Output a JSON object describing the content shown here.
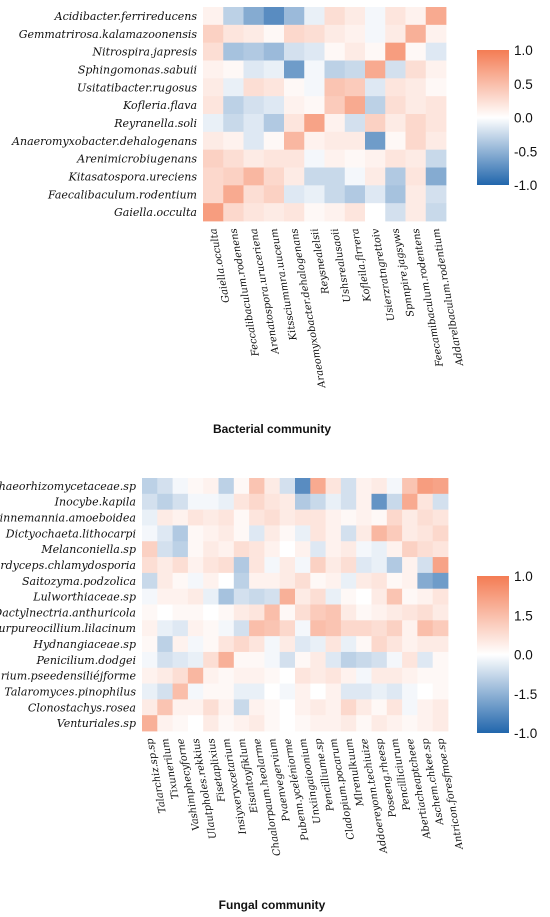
{
  "chart_data": [
    {
      "type": "heatmap",
      "caption": "Bacterial community",
      "rows": [
        "Acidibacter.ferrireducens",
        "Gemmatrirosa.kalamazoonensis",
        "Nitrospira.japresis",
        "Sphingomonas.sabuii",
        "Usitatibacter.rugosus",
        "Kofleria.flava",
        "Reyranella.soli",
        "Anaeromyxobacter.dehalogenans",
        "Arenimicrobiugenans",
        "Kitasatospora.ureciens",
        "Faecalibaculum.rodentium",
        "Gaiella.occulta"
      ],
      "columns": [
        "Gaiella.occulta",
        "Feccalibaculum.rodenens",
        "Arenatospora.uruceriena",
        "Kitssciummra.uuceum",
        "Araeomyxobacter.dehalogenans",
        "Reysnealelsii",
        "Ushsrealusaoii",
        "Kofleila.flrrera",
        "Usierzratngrettoiv",
        "Spnnpire.jagsyws",
        "Feecamibaculum.rodentens",
        "Addarelbaculum.rodentium"
      ],
      "values": [
        [
          0.1,
          -0.3,
          -0.55,
          -0.75,
          -0.45,
          -0.1,
          0.25,
          0.15,
          -0.05,
          0.2,
          0.1,
          0.65
        ],
        [
          0.35,
          0.2,
          0.15,
          0.05,
          0.3,
          0.25,
          0.15,
          0.1,
          -0.05,
          0.15,
          0.6,
          0.1
        ],
        [
          0.25,
          -0.4,
          -0.35,
          -0.45,
          -0.2,
          -0.15,
          0.05,
          0.15,
          0.05,
          0.75,
          0.05,
          -0.15
        ],
        [
          0.1,
          0.05,
          -0.15,
          -0.1,
          -0.65,
          -0.05,
          -0.3,
          -0.25,
          0.65,
          -0.2,
          0.25,
          0.1
        ],
        [
          0.15,
          -0.1,
          0.25,
          0.2,
          0.05,
          -0.05,
          0.45,
          0.4,
          -0.15,
          0.2,
          0.15,
          0.05
        ],
        [
          0.2,
          -0.3,
          -0.2,
          -0.15,
          0.1,
          0.05,
          0.4,
          0.65,
          -0.3,
          0.25,
          0.15,
          0.2
        ],
        [
          -0.1,
          -0.25,
          -0.15,
          -0.35,
          0.2,
          0.7,
          0.1,
          -0.2,
          0.35,
          0.15,
          0.3,
          0.2
        ],
        [
          0.15,
          0.1,
          -0.15,
          0.05,
          0.55,
          0.1,
          0.15,
          0.15,
          -0.65,
          0.05,
          0.3,
          0.15
        ],
        [
          0.35,
          0.25,
          0.15,
          0.2,
          0.2,
          -0.05,
          0.1,
          0.05,
          0.1,
          0.2,
          0.15,
          -0.25
        ],
        [
          0.3,
          0.35,
          0.55,
          0.3,
          0.15,
          -0.25,
          -0.25,
          -0.05,
          0.15,
          -0.35,
          0.2,
          -0.55
        ],
        [
          0.3,
          0.65,
          0.25,
          0.35,
          -0.15,
          -0.1,
          -0.25,
          -0.35,
          -0.15,
          -0.4,
          0.15,
          -0.2
        ],
        [
          0.75,
          0.3,
          0.2,
          0.15,
          0.2,
          0.05,
          0.1,
          0.2,
          0.0,
          -0.2,
          0.15,
          -0.25
        ]
      ],
      "legend_ticks": [
        "1.0",
        "0.5",
        "0.0",
        "-0.5",
        "-1.0"
      ],
      "colormap": {
        "low": "#2166ac",
        "mid": "#ffffff",
        "high": "#f47c54"
      }
    },
    {
      "type": "heatmap",
      "caption": "Fungal community",
      "rows": [
        "Archaeorhizomycetaceae.sp",
        "Inocybe.kapila",
        "Linnemannia.amoeboidea",
        "Dictyochaeta.lithocarpi",
        "Melanconiella.sp",
        "Metacordyceps.chlamydosporia",
        "Saitozyma.podzolica",
        "Lulworthiaceae.sp",
        "Dactylnectria.anthuricola",
        "Purpureocillium.lilacinum",
        "Hydnangiaceae.sp",
        "Penicilium.dodgei",
        "Fusarium.pseedensiliéjforme",
        "Talaromyces.pinophilus",
        "Clonostachys.rosea",
        "Venturiales.sp"
      ],
      "columns": [
        "Talarchiz.sp.sp",
        "Tixunerilum",
        "Vashimphecyforne",
        "Ulautpholes.rekkius",
        "Fisetaplixius",
        "Insiyxeryxcetarium",
        "Eisantoyfiklum",
        "Chaalorpaum.heolarme",
        "Pvaenvegervium",
        "Pubenn.yceléniorme",
        "Unxiingaioonium",
        "Pencilliume.sp",
        "Cladopium.pocarum",
        "Mlrenulkuum",
        "Addoereyonn.techiuize",
        "Poseeng.rheesp",
        "Pencilliciurum",
        "Abertiacheaptcheee",
        "Aschem.chkee.sp",
        "Antricon.foresfmoe.sp"
      ],
      "values": [
        [
          -0.3,
          -0.2,
          -0.05,
          0.05,
          0.1,
          -0.3,
          0.05,
          0.45,
          0.15,
          -0.2,
          -0.75,
          0.65,
          0.2,
          -0.2,
          0.1,
          0.15,
          -0.05,
          0.45,
          0.75,
          0.7
        ],
        [
          -0.2,
          -0.3,
          -0.2,
          -0.05,
          -0.05,
          -0.1,
          0.2,
          0.3,
          0.2,
          0.15,
          -0.35,
          -0.25,
          -0.1,
          -0.2,
          0.1,
          -0.7,
          -0.25,
          0.65,
          0.2,
          -0.2
        ],
        [
          -0.1,
          0.15,
          0.1,
          0.2,
          0.15,
          0.2,
          0.05,
          0.2,
          0.25,
          0.15,
          0.2,
          0.2,
          0.1,
          0.05,
          0.1,
          0.05,
          0.3,
          0.15,
          0.25,
          0.2
        ],
        [
          -0.05,
          -0.15,
          -0.35,
          0.05,
          0.1,
          0.15,
          0.05,
          -0.15,
          0.15,
          0.05,
          -0.1,
          0.2,
          0.1,
          -0.2,
          0.15,
          0.55,
          0.4,
          0.15,
          0.2,
          0.3
        ],
        [
          0.35,
          -0.2,
          -0.3,
          0.05,
          0.15,
          0.1,
          0.25,
          0.2,
          0.1,
          0.0,
          0.1,
          -0.15,
          0.1,
          0.15,
          -0.05,
          -0.1,
          0.1,
          0.35,
          0.25,
          0.2
        ],
        [
          0.25,
          0.15,
          0.25,
          0.1,
          0.2,
          0.25,
          -0.35,
          0.2,
          -0.05,
          0.15,
          -0.05,
          0.35,
          0.15,
          0.25,
          -0.15,
          -0.1,
          -0.35,
          0.1,
          -0.2,
          0.7
        ],
        [
          -0.25,
          0.15,
          0.05,
          -0.05,
          0.1,
          0.0,
          -0.3,
          0.1,
          0.1,
          0.15,
          0.25,
          0.05,
          0.1,
          -0.1,
          0.15,
          0.2,
          0.05,
          0.1,
          -0.55,
          -0.65
        ],
        [
          -0.05,
          0.1,
          0.1,
          0.15,
          -0.1,
          -0.4,
          -0.2,
          -0.25,
          -0.2,
          0.6,
          0.15,
          0.25,
          -0.1,
          0.05,
          0.0,
          0.15,
          0.45,
          0.05,
          0.1,
          0.2
        ],
        [
          0.05,
          0.0,
          0.05,
          0.05,
          0.0,
          0.05,
          0.15,
          0.2,
          0.5,
          0.05,
          0.25,
          0.4,
          0.45,
          0.15,
          0.05,
          0.1,
          0.15,
          0.2,
          0.25,
          0.15
        ],
        [
          0.1,
          -0.1,
          -0.15,
          0.1,
          0.05,
          -0.05,
          -0.2,
          0.5,
          0.45,
          0.3,
          -0.05,
          0.5,
          0.45,
          0.3,
          0.3,
          0.25,
          0.35,
          0.1,
          0.5,
          0.4
        ],
        [
          0.05,
          -0.3,
          0.1,
          -0.05,
          0.05,
          0.2,
          0.3,
          0.2,
          -0.05,
          0.15,
          -0.15,
          -0.1,
          0.2,
          -0.1,
          0.05,
          0.3,
          0.2,
          0.1,
          0.15,
          0.15
        ],
        [
          -0.05,
          -0.2,
          -0.15,
          -0.1,
          0.25,
          0.6,
          0.05,
          0.05,
          -0.05,
          -0.2,
          0.05,
          0.15,
          -0.15,
          -0.3,
          -0.25,
          -0.2,
          -0.05,
          0.2,
          -0.15,
          0.05
        ],
        [
          0.1,
          0.15,
          0.25,
          0.55,
          0.1,
          0.05,
          0.1,
          0.1,
          0.05,
          0.0,
          0.2,
          0.15,
          0.2,
          0.1,
          -0.05,
          0.15,
          0.15,
          0.1,
          0.05,
          0.05
        ],
        [
          -0.1,
          -0.2,
          0.5,
          -0.05,
          0.05,
          0.05,
          -0.1,
          -0.1,
          0.0,
          -0.05,
          0.1,
          0.0,
          0.1,
          -0.15,
          -0.15,
          -0.1,
          -0.15,
          -0.05,
          0.0,
          0.05
        ],
        [
          0.15,
          0.45,
          0.1,
          0.1,
          0.25,
          0.1,
          -0.25,
          0.1,
          0.05,
          0.0,
          0.1,
          0.15,
          0.1,
          0.3,
          0.15,
          0.05,
          0.2,
          -0.05,
          0.1,
          0.15
        ],
        [
          0.6,
          0.1,
          0.05,
          0.0,
          0.15,
          0.05,
          0.1,
          0.15,
          0.05,
          0.0,
          0.05,
          0.1,
          0.1,
          0.15,
          0.05,
          0.15,
          0.1,
          0.05,
          0.1,
          0.15
        ]
      ],
      "legend_ticks": [
        "1.0",
        "1.5",
        "0.0",
        "-1.5",
        "-1.0"
      ],
      "colormap": {
        "low": "#2166ac",
        "mid": "#ffffff",
        "high": "#f47c54"
      }
    }
  ]
}
